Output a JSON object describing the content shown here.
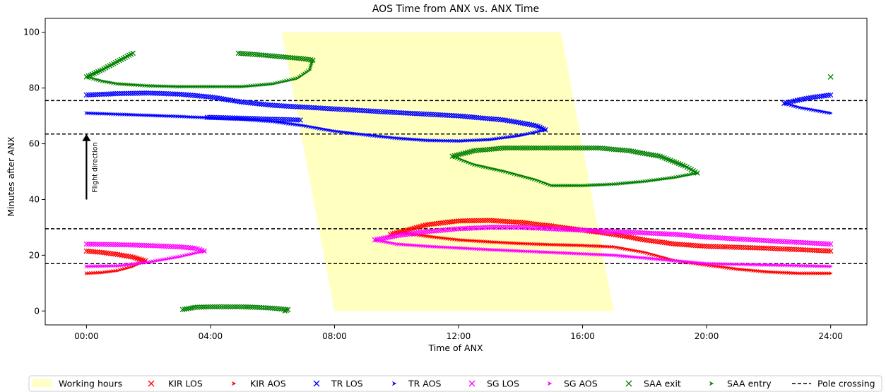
{
  "chart_data": {
    "type": "scatter",
    "title": "AOS Time from ANX vs. ANX Time",
    "xlabel": "Time of ANX",
    "ylabel": "Minutes after ANX",
    "xlim": [
      -1.33,
      25.17
    ],
    "ylim": [
      -5,
      105
    ],
    "x_ticks": [
      0,
      4,
      8,
      12,
      16,
      20,
      24
    ],
    "x_tick_labels": [
      "00:00",
      "04:00",
      "08:00",
      "12:00",
      "16:00",
      "20:00",
      "24:00"
    ],
    "y_ticks": [
      0,
      20,
      40,
      60,
      80,
      100
    ],
    "y_tick_labels": [
      "0",
      "20",
      "40",
      "60",
      "80",
      "100"
    ],
    "grid": false,
    "legend_position": "bottom",
    "working_hours": {
      "label": "Working hours",
      "color": "#ffffc0",
      "polygon": [
        [
          6.3,
          100
        ],
        [
          15.3,
          100
        ],
        [
          17.0,
          0
        ],
        [
          8.0,
          0
        ]
      ]
    },
    "pole_crossings": {
      "label": "Pole crossing",
      "values": [
        75.5,
        63.5,
        29.5,
        17.0
      ]
    },
    "annotation": {
      "text": "Flight direction",
      "x": 0,
      "y_from": 40,
      "y_to": 63
    },
    "series": [
      {
        "name": "KIR LOS",
        "color": "#ff0000",
        "marker": "x",
        "segments": [
          [
            [
              0.0,
              21.5
            ],
            [
              0.5,
              21.0
            ],
            [
              1.0,
              20.3
            ],
            [
              1.5,
              19.3
            ],
            [
              1.9,
              18.0
            ]
          ],
          [
            [
              9.8,
              27.5
            ],
            [
              10.5,
              29.5
            ],
            [
              11.0,
              31.0
            ],
            [
              12.0,
              32.3
            ],
            [
              13.0,
              32.5
            ],
            [
              14.0,
              31.8
            ],
            [
              15.0,
              30.5
            ],
            [
              16.0,
              29.0
            ],
            [
              17.0,
              27.5
            ],
            [
              18.0,
              25.5
            ],
            [
              19.0,
              24.0
            ],
            [
              20.0,
              23.2
            ],
            [
              22.0,
              22.5
            ],
            [
              24.0,
              21.5
            ]
          ]
        ]
      },
      {
        "name": "KIR AOS",
        "color": "#ff0000",
        "marker": "arrow",
        "segments": [
          [
            [
              0.0,
              13.5
            ],
            [
              0.5,
              13.8
            ],
            [
              1.0,
              14.5
            ],
            [
              1.5,
              16.0
            ],
            [
              1.9,
              18.0
            ]
          ],
          [
            [
              10.2,
              28.0
            ],
            [
              11.0,
              26.8
            ],
            [
              12.0,
              25.5
            ],
            [
              13.0,
              24.8
            ],
            [
              14.0,
              24.2
            ],
            [
              15.0,
              23.8
            ],
            [
              16.0,
              23.5
            ],
            [
              17.0,
              23.0
            ],
            [
              18.0,
              21.0
            ],
            [
              19.0,
              18.0
            ],
            [
              20.0,
              16.5
            ],
            [
              21.0,
              15.0
            ],
            [
              22.0,
              14.0
            ],
            [
              23.0,
              13.5
            ],
            [
              24.0,
              13.5
            ]
          ]
        ]
      },
      {
        "name": "TR LOS",
        "color": "#0000ff",
        "marker": "x",
        "segments": [
          [
            [
              0.0,
              77.5
            ],
            [
              1.0,
              78.0
            ],
            [
              2.0,
              78.2
            ],
            [
              3.0,
              77.8
            ],
            [
              4.0,
              76.8
            ],
            [
              5.0,
              75.0
            ],
            [
              6.0,
              73.8
            ],
            [
              8.0,
              72.5
            ],
            [
              10.0,
              71.2
            ],
            [
              12.0,
              70.0
            ],
            [
              13.5,
              68.5
            ],
            [
              14.5,
              66.5
            ],
            [
              14.8,
              65.0
            ]
          ],
          [
            [
              3.9,
              69.5
            ],
            [
              5.0,
              69.2
            ],
            [
              6.0,
              68.8
            ],
            [
              6.9,
              68.5
            ]
          ],
          [
            [
              22.5,
              74.5
            ],
            [
              23.0,
              75.8
            ],
            [
              23.5,
              76.8
            ],
            [
              24.0,
              77.5
            ]
          ]
        ]
      },
      {
        "name": "TR AOS",
        "color": "#0000ff",
        "marker": "arrow",
        "segments": [
          [
            [
              0.0,
              71.0
            ],
            [
              1.0,
              70.6
            ],
            [
              2.0,
              70.2
            ],
            [
              3.0,
              69.8
            ],
            [
              4.0,
              69.3
            ],
            [
              5.0,
              68.8
            ],
            [
              6.0,
              68.0
            ],
            [
              7.0,
              66.5
            ],
            [
              8.0,
              64.5
            ],
            [
              9.0,
              63.2
            ],
            [
              10.0,
              62.0
            ],
            [
              11.0,
              61.2
            ],
            [
              12.0,
              61.0
            ],
            [
              13.0,
              61.5
            ],
            [
              14.0,
              63.0
            ],
            [
              14.8,
              65.0
            ]
          ],
          [
            [
              22.5,
              74.5
            ],
            [
              23.0,
              73.0
            ],
            [
              23.5,
              72.0
            ],
            [
              24.0,
              71.0
            ]
          ]
        ]
      },
      {
        "name": "SG LOS",
        "color": "#ff00ff",
        "marker": "x",
        "segments": [
          [
            [
              0.0,
              24.0
            ],
            [
              1.0,
              23.8
            ],
            [
              2.0,
              23.5
            ],
            [
              3.0,
              23.0
            ],
            [
              3.5,
              22.5
            ],
            [
              3.8,
              21.5
            ]
          ],
          [
            [
              9.3,
              25.5
            ],
            [
              10.0,
              27.0
            ],
            [
              11.0,
              28.5
            ],
            [
              12.0,
              29.5
            ],
            [
              13.0,
              30.0
            ],
            [
              14.0,
              30.0
            ],
            [
              15.0,
              29.5
            ],
            [
              16.0,
              29.0
            ],
            [
              17.0,
              28.5
            ],
            [
              18.0,
              28.0
            ],
            [
              19.0,
              27.5
            ],
            [
              20.0,
              26.5
            ],
            [
              22.0,
              25.2
            ],
            [
              24.0,
              24.0
            ]
          ]
        ]
      },
      {
        "name": "SG AOS",
        "color": "#ff00ff",
        "marker": "arrow",
        "segments": [
          [
            [
              0.0,
              16.0
            ],
            [
              1.0,
              16.2
            ],
            [
              2.0,
              17.5
            ],
            [
              3.0,
              19.5
            ],
            [
              3.8,
              21.5
            ]
          ],
          [
            [
              9.3,
              25.5
            ],
            [
              10.0,
              24.0
            ],
            [
              11.0,
              23.2
            ],
            [
              12.0,
              22.6
            ],
            [
              13.0,
              22.0
            ],
            [
              14.0,
              21.5
            ],
            [
              15.0,
              21.0
            ],
            [
              16.0,
              20.5
            ],
            [
              17.0,
              20.0
            ],
            [
              18.0,
              19.0
            ],
            [
              19.0,
              18.0
            ],
            [
              20.0,
              17.0
            ],
            [
              22.0,
              16.5
            ],
            [
              24.0,
              16.0
            ]
          ]
        ]
      },
      {
        "name": "SAA exit",
        "color": "#008000",
        "marker": "x",
        "segments": [
          [
            [
              0.0,
              84.0
            ],
            [
              0.5,
              86.5
            ],
            [
              1.0,
              89.5
            ],
            [
              1.5,
              92.5
            ]
          ],
          [
            [
              4.9,
              92.5
            ],
            [
              5.5,
              92.0
            ],
            [
              6.0,
              91.5
            ],
            [
              6.5,
              91.0
            ],
            [
              7.0,
              90.5
            ],
            [
              7.3,
              90.0
            ]
          ],
          [
            [
              3.1,
              0.5
            ],
            [
              3.5,
              1.3
            ],
            [
              4.0,
              1.5
            ],
            [
              5.0,
              1.5
            ],
            [
              5.5,
              1.3
            ],
            [
              6.0,
              1.0
            ],
            [
              6.5,
              0.5
            ],
            [
              6.4,
              0.0
            ]
          ],
          [
            [
              11.8,
              55.5
            ],
            [
              12.5,
              57.5
            ],
            [
              13.5,
              58.5
            ],
            [
              15.0,
              58.5
            ],
            [
              16.5,
              58.5
            ],
            [
              17.5,
              57.5
            ],
            [
              18.5,
              55.5
            ],
            [
              19.3,
              52.0
            ],
            [
              19.7,
              49.5
            ]
          ],
          [
            [
              24.0,
              84.0
            ]
          ]
        ]
      },
      {
        "name": "SAA entry",
        "color": "#008000",
        "marker": "arrow",
        "segments": [
          [
            [
              0.0,
              84.0
            ],
            [
              0.5,
              82.5
            ],
            [
              1.0,
              81.5
            ],
            [
              2.0,
              80.8
            ],
            [
              3.0,
              80.5
            ],
            [
              4.0,
              80.5
            ],
            [
              5.0,
              80.5
            ],
            [
              6.0,
              81.5
            ],
            [
              6.8,
              83.5
            ],
            [
              7.2,
              86.5
            ],
            [
              7.3,
              90.0
            ]
          ],
          [
            [
              11.8,
              55.5
            ],
            [
              12.5,
              52.5
            ],
            [
              13.5,
              50.0
            ],
            [
              14.5,
              47.0
            ],
            [
              15.0,
              45.0
            ],
            [
              16.0,
              45.0
            ],
            [
              17.0,
              45.5
            ],
            [
              18.0,
              46.5
            ],
            [
              19.0,
              48.0
            ],
            [
              19.7,
              49.5
            ]
          ]
        ]
      }
    ],
    "legend": [
      "Working hours",
      "KIR LOS",
      "KIR AOS",
      "TR LOS",
      "TR AOS",
      "SG LOS",
      "SG AOS",
      "SAA exit",
      "SAA entry",
      "Pole crossing"
    ]
  }
}
